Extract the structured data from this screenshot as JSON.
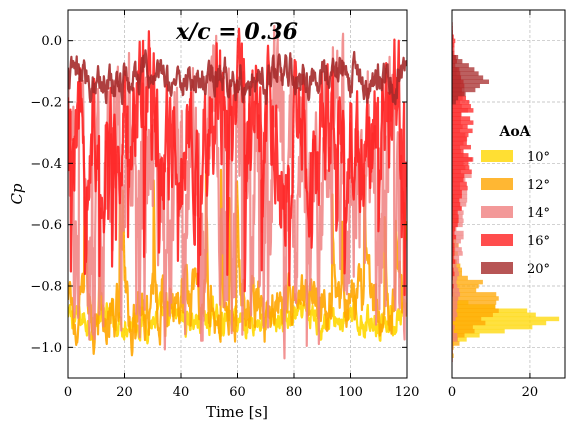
{
  "chart_data": [
    {
      "type": "line",
      "title": "x/c = 0.36",
      "xlabel": "Time [s]",
      "ylabel": "Cp",
      "xlim": [
        0,
        120
      ],
      "ylim": [
        -1.1,
        0.1
      ],
      "xticks": [
        0,
        20,
        40,
        60,
        80,
        100,
        120
      ],
      "yticks": [
        -1.0,
        -0.8,
        -0.6,
        -0.4,
        -0.2,
        0.0
      ],
      "x_tick_labels": [
        "0",
        "20",
        "40",
        "60",
        "80",
        "100",
        "120"
      ],
      "y_tick_labels": [
        "−1.0",
        "−0.8",
        "−0.6",
        "−0.4",
        "−0.2",
        "0.0"
      ],
      "grid": true,
      "series": [
        {
          "name": "10°",
          "color": "#FFD700",
          "mean": -0.91,
          "spread": 0.04
        },
        {
          "name": "12°",
          "color": "#FFA500",
          "mean": -0.87,
          "spread": 0.08
        },
        {
          "name": "14°",
          "color": "#F08080",
          "mean": -0.45,
          "spread": 0.28
        },
        {
          "name": "16°",
          "color": "#FF2020",
          "mean": -0.28,
          "spread": 0.18
        },
        {
          "name": "20°",
          "color": "#A52A2A",
          "mean": -0.12,
          "spread": 0.05
        }
      ]
    },
    {
      "type": "histogram",
      "orientation": "horizontal",
      "xlim": [
        0,
        29
      ],
      "xticks": [
        0,
        20
      ],
      "x_tick_labels": [
        "0",
        "20"
      ],
      "grid": true,
      "legend": {
        "title": "AoA",
        "position": "center-right",
        "entries": [
          "10°",
          "12°",
          "14°",
          "16°",
          "20°"
        ]
      }
    }
  ]
}
